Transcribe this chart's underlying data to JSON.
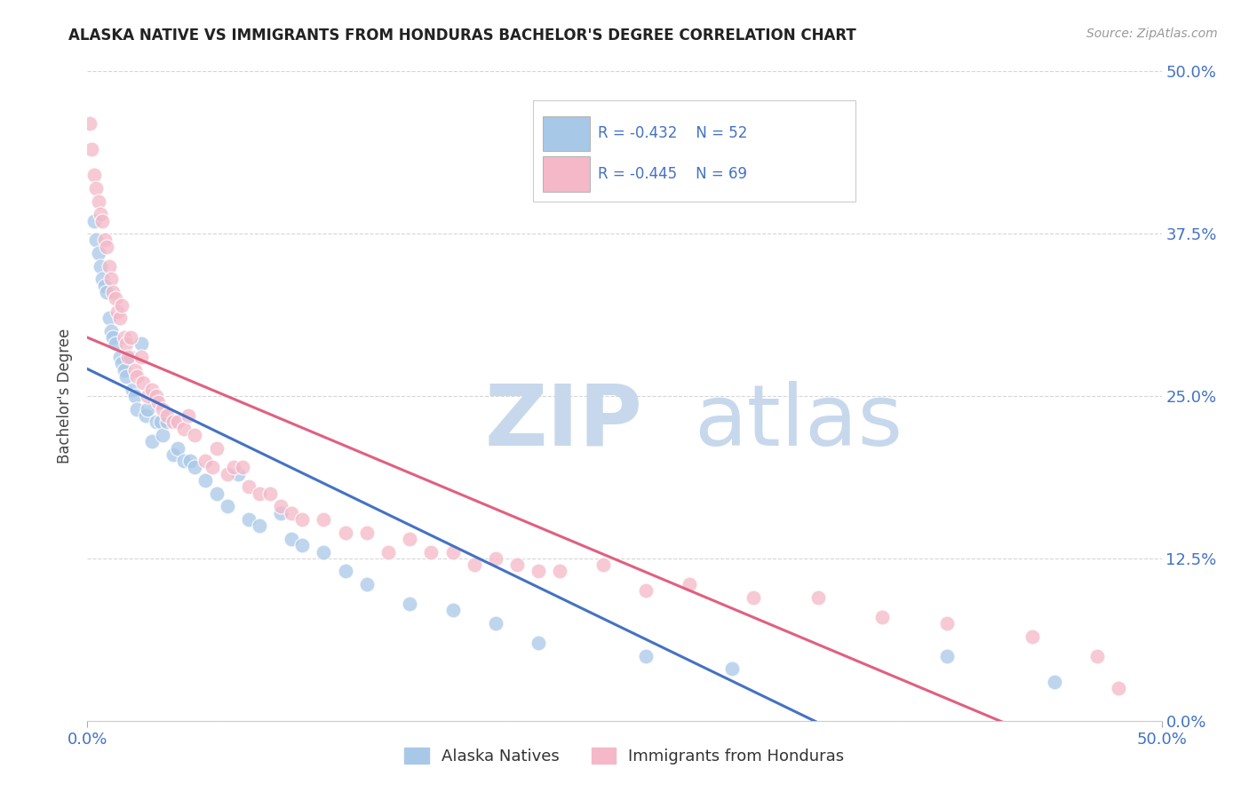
{
  "title": "ALASKA NATIVE VS IMMIGRANTS FROM HONDURAS BACHELOR'S DEGREE CORRELATION CHART",
  "source": "Source: ZipAtlas.com",
  "ylabel": "Bachelor's Degree",
  "xlim": [
    0.0,
    0.5
  ],
  "ylim": [
    0.0,
    0.5
  ],
  "xtick_positions": [
    0.0,
    0.5
  ],
  "xtick_labels": [
    "0.0%",
    "50.0%"
  ],
  "ytick_positions": [
    0.0,
    0.125,
    0.25,
    0.375,
    0.5
  ],
  "ytick_labels": [
    "0.0%",
    "12.5%",
    "25.0%",
    "37.5%",
    "50.0%"
  ],
  "grid_color": "#cccccc",
  "background_color": "#ffffff",
  "blue_color": "#a8c8e8",
  "blue_line_color": "#4472c4",
  "pink_color": "#f4b8c8",
  "pink_line_color": "#e06080",
  "watermark_zip_color": "#c8d8ec",
  "watermark_atlas_color": "#c8d8ec",
  "legend_r_blue": "-0.432",
  "legend_n_blue": "52",
  "legend_r_pink": "-0.445",
  "legend_n_pink": "69",
  "label_blue": "Alaska Natives",
  "label_pink": "Immigrants from Honduras",
  "title_color": "#222222",
  "source_color": "#999999",
  "legend_value_color": "#4472c4",
  "axis_tick_color": "#4472c4",
  "alaska_x": [
    0.003,
    0.004,
    0.005,
    0.006,
    0.007,
    0.008,
    0.009,
    0.01,
    0.011,
    0.012,
    0.013,
    0.015,
    0.016,
    0.017,
    0.018,
    0.02,
    0.021,
    0.022,
    0.023,
    0.025,
    0.027,
    0.028,
    0.03,
    0.032,
    0.034,
    0.035,
    0.037,
    0.04,
    0.042,
    0.045,
    0.048,
    0.05,
    0.055,
    0.06,
    0.065,
    0.07,
    0.075,
    0.08,
    0.09,
    0.095,
    0.1,
    0.11,
    0.12,
    0.13,
    0.15,
    0.17,
    0.19,
    0.21,
    0.26,
    0.3,
    0.4,
    0.45
  ],
  "alaska_y": [
    0.385,
    0.37,
    0.36,
    0.35,
    0.34,
    0.335,
    0.33,
    0.31,
    0.3,
    0.295,
    0.29,
    0.28,
    0.275,
    0.27,
    0.265,
    0.28,
    0.255,
    0.25,
    0.24,
    0.29,
    0.235,
    0.24,
    0.215,
    0.23,
    0.23,
    0.22,
    0.23,
    0.205,
    0.21,
    0.2,
    0.2,
    0.195,
    0.185,
    0.175,
    0.165,
    0.19,
    0.155,
    0.15,
    0.16,
    0.14,
    0.135,
    0.13,
    0.115,
    0.105,
    0.09,
    0.085,
    0.075,
    0.06,
    0.05,
    0.04,
    0.05,
    0.03
  ],
  "honduras_x": [
    0.001,
    0.002,
    0.003,
    0.004,
    0.005,
    0.006,
    0.007,
    0.008,
    0.009,
    0.01,
    0.011,
    0.012,
    0.013,
    0.014,
    0.015,
    0.016,
    0.017,
    0.018,
    0.019,
    0.02,
    0.022,
    0.023,
    0.025,
    0.026,
    0.028,
    0.03,
    0.032,
    0.033,
    0.035,
    0.037,
    0.04,
    0.042,
    0.045,
    0.047,
    0.05,
    0.055,
    0.058,
    0.06,
    0.065,
    0.068,
    0.072,
    0.075,
    0.08,
    0.085,
    0.09,
    0.095,
    0.1,
    0.11,
    0.12,
    0.13,
    0.14,
    0.15,
    0.16,
    0.17,
    0.18,
    0.19,
    0.2,
    0.21,
    0.22,
    0.24,
    0.26,
    0.28,
    0.31,
    0.34,
    0.37,
    0.4,
    0.44,
    0.47,
    0.48
  ],
  "honduras_y": [
    0.46,
    0.44,
    0.42,
    0.41,
    0.4,
    0.39,
    0.385,
    0.37,
    0.365,
    0.35,
    0.34,
    0.33,
    0.325,
    0.315,
    0.31,
    0.32,
    0.295,
    0.29,
    0.28,
    0.295,
    0.27,
    0.265,
    0.28,
    0.26,
    0.25,
    0.255,
    0.25,
    0.245,
    0.24,
    0.235,
    0.23,
    0.23,
    0.225,
    0.235,
    0.22,
    0.2,
    0.195,
    0.21,
    0.19,
    0.195,
    0.195,
    0.18,
    0.175,
    0.175,
    0.165,
    0.16,
    0.155,
    0.155,
    0.145,
    0.145,
    0.13,
    0.14,
    0.13,
    0.13,
    0.12,
    0.125,
    0.12,
    0.115,
    0.115,
    0.12,
    0.1,
    0.105,
    0.095,
    0.095,
    0.08,
    0.075,
    0.065,
    0.05,
    0.025
  ]
}
